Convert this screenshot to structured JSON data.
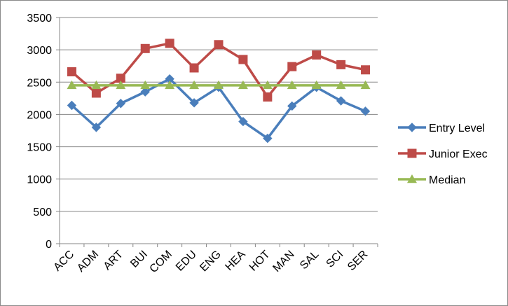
{
  "chart_data": {
    "type": "line",
    "categories": [
      "ACC",
      "ADM",
      "ART",
      "BUI",
      "COM",
      "EDU",
      "ENG",
      "HEA",
      "HOT",
      "MAN",
      "SAL",
      "SCI",
      "SER"
    ],
    "ylim": [
      0,
      3500
    ],
    "yticks": [
      0,
      500,
      1000,
      1500,
      2000,
      2500,
      3000,
      3500
    ],
    "grid": true,
    "legend_placement": "right",
    "series": [
      {
        "name": "Entry Level",
        "color": "#4A7EBB",
        "marker": "diamond",
        "values": [
          2140,
          1800,
          2170,
          2350,
          2550,
          2180,
          2420,
          1890,
          1630,
          2130,
          2420,
          2210,
          2050
        ]
      },
      {
        "name": "Junior Exec",
        "color": "#BE4B48",
        "marker": "square",
        "values": [
          2660,
          2330,
          2560,
          3020,
          3100,
          2720,
          3080,
          2850,
          2270,
          2740,
          2920,
          2770,
          2690
        ]
      },
      {
        "name": "Median",
        "color": "#98B954",
        "marker": "triangle",
        "values": [
          2450,
          2450,
          2450,
          2450,
          2450,
          2450,
          2450,
          2450,
          2450,
          2450,
          2450,
          2450,
          2450
        ]
      }
    ]
  }
}
